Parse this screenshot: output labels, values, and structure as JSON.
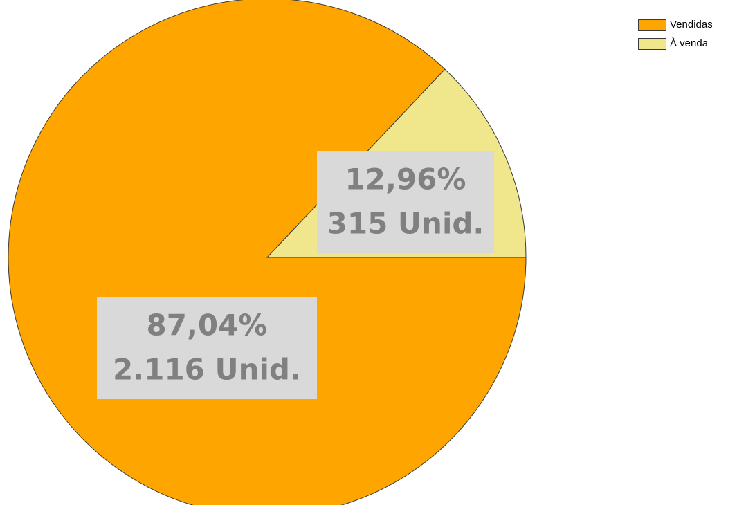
{
  "chart_data": {
    "type": "pie",
    "categories": [
      "Vendidas",
      "À venda"
    ],
    "values": [
      2116,
      315
    ],
    "value_labels": [
      "2.116 Unid.",
      "315 Unid."
    ],
    "percentages": [
      87.04,
      12.96
    ],
    "percentage_labels": [
      "87,04%",
      "12,96%"
    ],
    "colors": [
      "#ffa500",
      "#f0e68c"
    ],
    "legend": "top-right"
  }
}
